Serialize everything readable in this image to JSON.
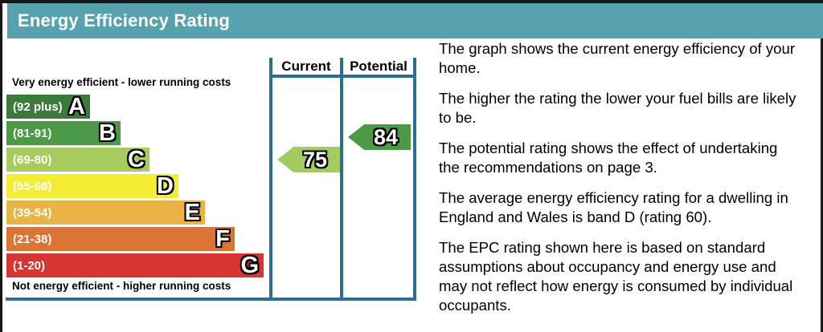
{
  "window": {
    "title": "Energy Efficiency Rating"
  },
  "colors": {
    "header_bg": "#58a1af",
    "frame_blue": "#2d6e93",
    "page_border": "#161616"
  },
  "chart_data": {
    "type": "bar",
    "title": "Energy Efficiency Rating",
    "top_caption": "Very energy efficient - lower running costs",
    "bottom_caption": "Not energy efficient - higher running costs",
    "columns": {
      "current_label": "Current",
      "potential_label": "Potential"
    },
    "bands": [
      {
        "letter": "A",
        "range_label": "(92 plus)",
        "range_min": 92,
        "range_max": 100,
        "color": "#3a7b3b"
      },
      {
        "letter": "B",
        "range_label": "(81-91)",
        "range_min": 81,
        "range_max": 91,
        "color": "#4e9948"
      },
      {
        "letter": "C",
        "range_label": "(69-80)",
        "range_min": 69,
        "range_max": 80,
        "color": "#a8cb5d"
      },
      {
        "letter": "D",
        "range_label": "(55-68)",
        "range_min": 55,
        "range_max": 68,
        "color": "#f5ec35"
      },
      {
        "letter": "E",
        "range_label": "(39-54)",
        "range_min": 39,
        "range_max": 54,
        "color": "#e9b345"
      },
      {
        "letter": "F",
        "range_label": "(21-38)",
        "range_min": 21,
        "range_max": 38,
        "color": "#dc7434"
      },
      {
        "letter": "G",
        "range_label": "(1-20)",
        "range_min": 1,
        "range_max": 20,
        "color": "#d63531"
      }
    ],
    "current": {
      "value": 75,
      "band": "C",
      "color": "#a4cb5f"
    },
    "potential": {
      "value": 84,
      "band": "B",
      "color": "#4e9948"
    }
  },
  "description": {
    "paragraphs": [
      {
        "lines": [
          "The graph shows the current energy efficiency of your",
          "home."
        ]
      },
      {
        "lines": [
          "The higher the rating the lower your fuel bills are likely",
          "to be."
        ]
      },
      {
        "lines": [
          "The potential rating shows the effect of undertaking",
          "the recommendations on page 3."
        ]
      },
      {
        "lines": [
          "The average energy efficiency rating for a dwelling in",
          "England and Wales is band D (rating 60)."
        ]
      },
      {
        "lines": [
          "The EPC rating shown here is based on standard",
          "assumptions about occupancy and energy use and",
          "may not reflect how energy is consumed by individual",
          "occupants."
        ]
      }
    ]
  }
}
